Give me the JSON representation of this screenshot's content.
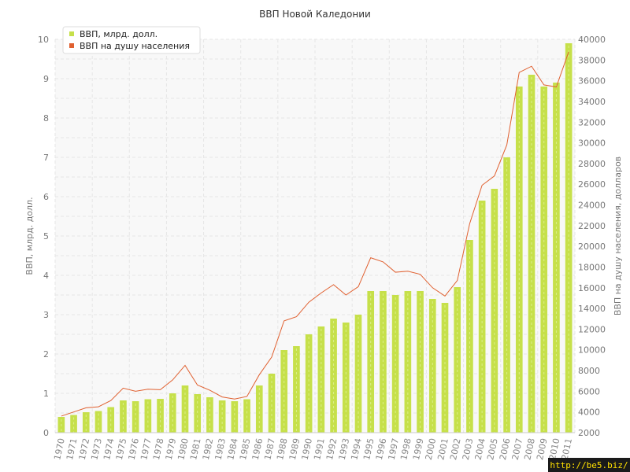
{
  "chart_data": {
    "type": "bar",
    "title": "ВВП Новой Каледонии",
    "ylabel": "ВВП, млрд. долл.",
    "y2label": "ВВП на душу населения, долларов",
    "ylim": [
      0,
      10
    ],
    "y2lim": [
      2000,
      40000
    ],
    "yticks": [
      0,
      1,
      2,
      3,
      4,
      5,
      6,
      7,
      8,
      9,
      10
    ],
    "y2ticks": [
      2000,
      4000,
      6000,
      8000,
      10000,
      12000,
      14000,
      16000,
      18000,
      20000,
      22000,
      24000,
      26000,
      28000,
      30000,
      32000,
      34000,
      36000,
      38000,
      40000
    ],
    "grid": true,
    "legend_position": "top-left",
    "categories": [
      "1970",
      "1971",
      "1972",
      "1973",
      "1974",
      "1975",
      "1976",
      "1977",
      "1978",
      "1979",
      "1980",
      "1981",
      "1982",
      "1983",
      "1984",
      "1985",
      "1986",
      "1987",
      "1988",
      "1989",
      "1990",
      "1991",
      "1992",
      "1993",
      "1994",
      "1995",
      "1996",
      "1997",
      "1998",
      "1999",
      "2000",
      "2001",
      "2002",
      "2003",
      "2004",
      "2005",
      "2006",
      "2007",
      "2008",
      "2009",
      "2010",
      "2011"
    ],
    "series": [
      {
        "name": "ВВП, млрд. долл.",
        "type": "bar",
        "axis": "left",
        "color": "#c6e04a",
        "values": [
          0.4,
          0.45,
          0.52,
          0.55,
          0.65,
          0.82,
          0.8,
          0.85,
          0.86,
          1.0,
          1.2,
          0.98,
          0.9,
          0.82,
          0.8,
          0.85,
          1.2,
          1.5,
          2.1,
          2.2,
          2.5,
          2.7,
          2.9,
          2.8,
          3.0,
          3.6,
          3.6,
          3.5,
          3.6,
          3.6,
          3.4,
          3.3,
          3.7,
          4.9,
          5.9,
          6.2,
          7.0,
          8.8,
          9.1,
          8.8,
          8.9,
          9.9
        ]
      },
      {
        "name": "ВВП на душу населения",
        "type": "line",
        "axis": "right",
        "color": "#e06030",
        "values": [
          3600,
          4000,
          4400,
          4500,
          5100,
          6300,
          6000,
          6200,
          6150,
          7100,
          8500,
          6600,
          6100,
          5450,
          5250,
          5500,
          7600,
          9300,
          12800,
          13200,
          14600,
          15500,
          16300,
          15300,
          16100,
          18900,
          18500,
          17500,
          17600,
          17300,
          16000,
          15200,
          16700,
          22200,
          25900,
          26800,
          29800,
          36800,
          37400,
          35600,
          35400,
          38800
        ]
      }
    ]
  },
  "watermark": "http://be5.biz/"
}
